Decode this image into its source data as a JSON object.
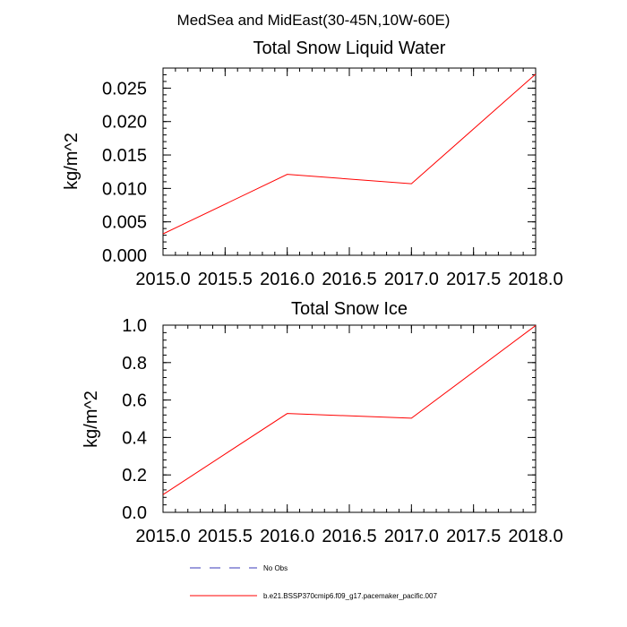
{
  "figure_title": "MedSea and MidEast(30-45N,10W-60E)",
  "colors": {
    "series": "#ff0000",
    "obs": "#3a3ab8",
    "axis": "#000000"
  },
  "chart_data": [
    {
      "type": "line",
      "title": "Total Snow Liquid Water",
      "xlabel": "",
      "ylabel": "kg/m^2",
      "xlim": [
        2015.0,
        2018.0
      ],
      "ylim": [
        0.0,
        0.028
      ],
      "x_ticks": [
        2015.0,
        2015.5,
        2016.0,
        2016.5,
        2017.0,
        2017.5,
        2018.0
      ],
      "x_tick_labels": [
        "2015.0",
        "2015.5",
        "2016.0",
        "2016.5",
        "2017.0",
        "2017.5",
        "2018.0"
      ],
      "y_ticks": [
        0.0,
        0.005,
        0.01,
        0.015,
        0.02,
        0.025
      ],
      "y_tick_labels": [
        "0.000",
        "0.005",
        "0.010",
        "0.015",
        "0.020",
        "0.025"
      ],
      "y_minor_step": 0.001,
      "series": [
        {
          "name": "b.e21.BSSP370cmip6.f09_g17.pacemaker_pacific.007",
          "x": [
            2015,
            2016,
            2017,
            2018
          ],
          "values": [
            0.0032,
            0.0121,
            0.0107,
            0.0271
          ]
        }
      ]
    },
    {
      "type": "line",
      "title": "Total Snow Ice",
      "xlabel": "",
      "ylabel": "kg/m^2",
      "xlim": [
        2015.0,
        2018.0
      ],
      "ylim": [
        0.0,
        1.0
      ],
      "x_ticks": [
        2015.0,
        2015.5,
        2016.0,
        2016.5,
        2017.0,
        2017.5,
        2018.0
      ],
      "x_tick_labels": [
        "2015.0",
        "2015.5",
        "2016.0",
        "2016.5",
        "2017.0",
        "2017.5",
        "2018.0"
      ],
      "y_ticks": [
        0.0,
        0.2,
        0.4,
        0.6,
        0.8,
        1.0
      ],
      "y_tick_labels": [
        "0.0",
        "0.2",
        "0.4",
        "0.6",
        "0.8",
        "1.0"
      ],
      "y_minor_step": 0.04,
      "series": [
        {
          "name": "b.e21.BSSP370cmip6.f09_g17.pacemaker_pacific.007",
          "x": [
            2015,
            2016,
            2017,
            2018
          ],
          "values": [
            0.095,
            0.528,
            0.503,
            0.998
          ]
        }
      ]
    }
  ],
  "legend": [
    {
      "label": "No Obs",
      "style": "dashed",
      "color_key": "obs"
    },
    {
      "label": "b.e21.BSSP370cmip6.f09_g17.pacemaker_pacific.007",
      "style": "solid",
      "color_key": "series"
    }
  ]
}
